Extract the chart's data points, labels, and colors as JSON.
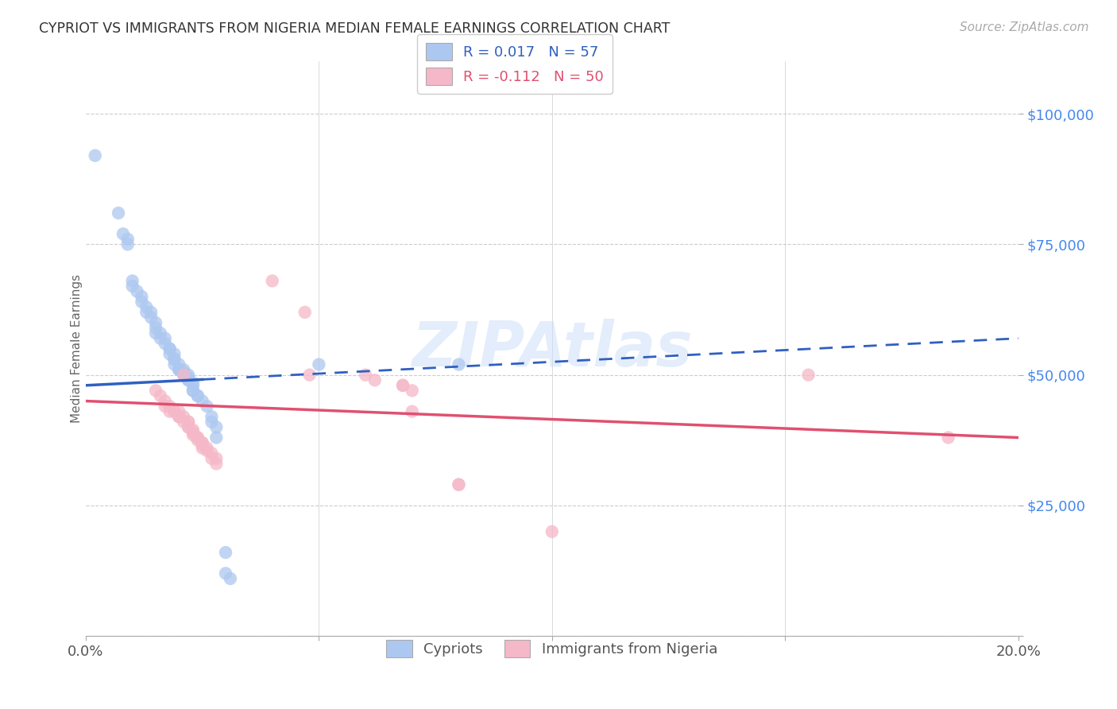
{
  "title": "CYPRIOT VS IMMIGRANTS FROM NIGERIA MEDIAN FEMALE EARNINGS CORRELATION CHART",
  "source": "Source: ZipAtlas.com",
  "ylabel": "Median Female Earnings",
  "xlim": [
    0.0,
    0.2
  ],
  "ylim": [
    0,
    110000
  ],
  "yticks": [
    0,
    25000,
    50000,
    75000,
    100000
  ],
  "ytick_labels": [
    "",
    "$25,000",
    "$50,000",
    "$75,000",
    "$100,000"
  ],
  "xticks": [
    0.0,
    0.05,
    0.1,
    0.15,
    0.2
  ],
  "xtick_labels": [
    "0.0%",
    "",
    "",
    "",
    "20.0%"
  ],
  "background_color": "#ffffff",
  "grid_color": "#cccccc",
  "legend_r_blue": "0.017",
  "legend_n_blue": "57",
  "legend_r_pink": "-0.112",
  "legend_n_pink": "50",
  "blue_color": "#adc8f0",
  "blue_line_color": "#3060c0",
  "pink_color": "#f5b8c8",
  "pink_line_color": "#e05070",
  "blue_scatter": [
    [
      0.002,
      92000
    ],
    [
      0.007,
      81000
    ],
    [
      0.008,
      77000
    ],
    [
      0.009,
      76000
    ],
    [
      0.009,
      75000
    ],
    [
      0.01,
      68000
    ],
    [
      0.01,
      67000
    ],
    [
      0.011,
      66000
    ],
    [
      0.012,
      65000
    ],
    [
      0.012,
      64000
    ],
    [
      0.013,
      63000
    ],
    [
      0.013,
      62000
    ],
    [
      0.014,
      62000
    ],
    [
      0.014,
      61000
    ],
    [
      0.015,
      60000
    ],
    [
      0.015,
      59000
    ],
    [
      0.015,
      58000
    ],
    [
      0.016,
      58000
    ],
    [
      0.016,
      57000
    ],
    [
      0.017,
      57000
    ],
    [
      0.017,
      56000
    ],
    [
      0.018,
      55000
    ],
    [
      0.018,
      55000
    ],
    [
      0.018,
      54000
    ],
    [
      0.019,
      54000
    ],
    [
      0.019,
      53000
    ],
    [
      0.019,
      53000
    ],
    [
      0.019,
      52000
    ],
    [
      0.02,
      52000
    ],
    [
      0.02,
      51000
    ],
    [
      0.02,
      51000
    ],
    [
      0.02,
      51000
    ],
    [
      0.021,
      51000
    ],
    [
      0.021,
      50500
    ],
    [
      0.021,
      50000
    ],
    [
      0.021,
      50000
    ],
    [
      0.022,
      50000
    ],
    [
      0.022,
      49500
    ],
    [
      0.022,
      49000
    ],
    [
      0.022,
      49000
    ],
    [
      0.023,
      48500
    ],
    [
      0.023,
      48000
    ],
    [
      0.023,
      47000
    ],
    [
      0.023,
      47000
    ],
    [
      0.024,
      46000
    ],
    [
      0.024,
      46000
    ],
    [
      0.025,
      45000
    ],
    [
      0.026,
      44000
    ],
    [
      0.027,
      42000
    ],
    [
      0.027,
      41000
    ],
    [
      0.028,
      40000
    ],
    [
      0.028,
      38000
    ],
    [
      0.05,
      52000
    ],
    [
      0.08,
      52000
    ],
    [
      0.03,
      16000
    ],
    [
      0.03,
      12000
    ],
    [
      0.031,
      11000
    ]
  ],
  "pink_scatter": [
    [
      0.015,
      47000
    ],
    [
      0.016,
      46000
    ],
    [
      0.017,
      45000
    ],
    [
      0.017,
      44000
    ],
    [
      0.018,
      44000
    ],
    [
      0.018,
      43000
    ],
    [
      0.019,
      43000
    ],
    [
      0.019,
      43000
    ],
    [
      0.02,
      43000
    ],
    [
      0.02,
      42000
    ],
    [
      0.02,
      42000
    ],
    [
      0.02,
      42000
    ],
    [
      0.021,
      50000
    ],
    [
      0.021,
      42000
    ],
    [
      0.021,
      41000
    ],
    [
      0.022,
      41000
    ],
    [
      0.022,
      41000
    ],
    [
      0.022,
      40000
    ],
    [
      0.022,
      40000
    ],
    [
      0.023,
      39500
    ],
    [
      0.023,
      39000
    ],
    [
      0.023,
      39000
    ],
    [
      0.023,
      38500
    ],
    [
      0.024,
      38000
    ],
    [
      0.024,
      38000
    ],
    [
      0.024,
      37500
    ],
    [
      0.025,
      37000
    ],
    [
      0.025,
      37000
    ],
    [
      0.025,
      36500
    ],
    [
      0.025,
      36000
    ],
    [
      0.026,
      36000
    ],
    [
      0.026,
      35500
    ],
    [
      0.027,
      35000
    ],
    [
      0.027,
      34000
    ],
    [
      0.028,
      34000
    ],
    [
      0.028,
      33000
    ],
    [
      0.04,
      68000
    ],
    [
      0.047,
      62000
    ],
    [
      0.048,
      50000
    ],
    [
      0.06,
      50000
    ],
    [
      0.062,
      49000
    ],
    [
      0.068,
      48000
    ],
    [
      0.068,
      48000
    ],
    [
      0.07,
      47000
    ],
    [
      0.07,
      43000
    ],
    [
      0.08,
      29000
    ],
    [
      0.08,
      29000
    ],
    [
      0.1,
      20000
    ],
    [
      0.155,
      50000
    ],
    [
      0.185,
      38000
    ]
  ],
  "blue_line": [
    [
      0.0,
      48000
    ],
    [
      0.2,
      57000
    ]
  ],
  "blue_line_dashed": [
    [
      0.025,
      49500
    ],
    [
      0.2,
      57000
    ]
  ],
  "pink_line": [
    [
      0.0,
      45000
    ],
    [
      0.2,
      38000
    ]
  ]
}
